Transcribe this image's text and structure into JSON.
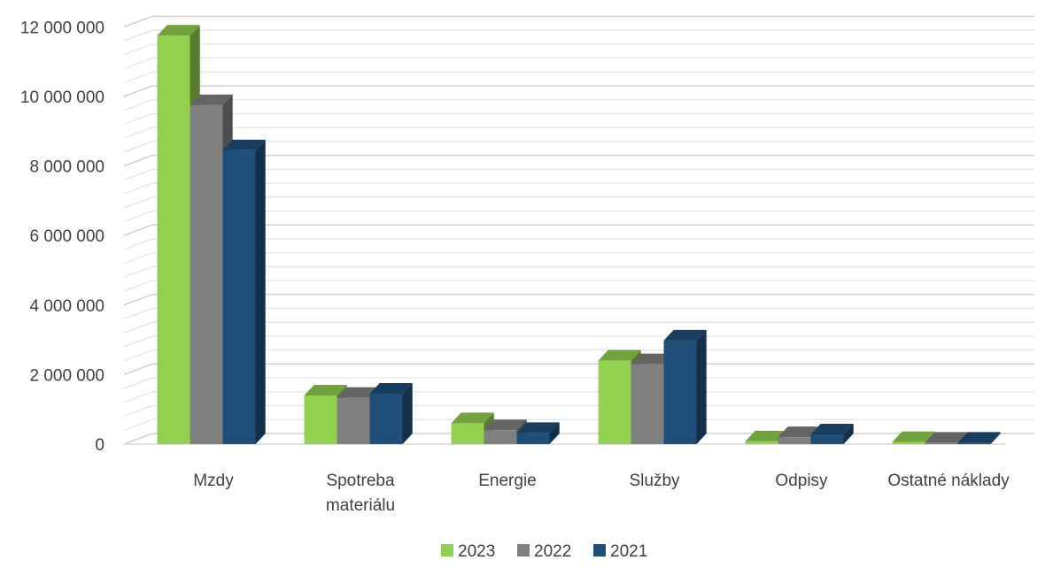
{
  "chart_data": {
    "type": "bar",
    "style": "3d-clustered-column",
    "categories": [
      "Mzdy",
      "Spotreba materiálu",
      "Energie",
      "Služby",
      "Odpisy",
      "Ostatné náklady"
    ],
    "category_label_lines": [
      [
        "Mzdy"
      ],
      [
        "Spotreba",
        "materiálu"
      ],
      [
        "Energie"
      ],
      [
        "Služby"
      ],
      [
        "Odpisy"
      ],
      [
        "Ostatné náklady"
      ]
    ],
    "series": [
      {
        "name": "2023",
        "color": "#92d050",
        "values": [
          11750000,
          1400000,
          600000,
          2400000,
          80000,
          60000
        ]
      },
      {
        "name": "2022",
        "color": "#808080",
        "values": [
          9750000,
          1330000,
          400000,
          2300000,
          200000,
          40000
        ]
      },
      {
        "name": "2021",
        "color": "#1f4e79",
        "values": [
          8450000,
          1450000,
          320000,
          2980000,
          280000,
          40000
        ]
      }
    ],
    "ylim": [
      0,
      12000000
    ],
    "yticks": [
      "0",
      "2 000 000",
      "4 000 000",
      "6 000 000",
      "8 000 000",
      "10 000 000",
      "12 000 000"
    ],
    "title": "",
    "xlabel": "",
    "ylabel": "",
    "grid": true,
    "legend_position": "bottom"
  }
}
